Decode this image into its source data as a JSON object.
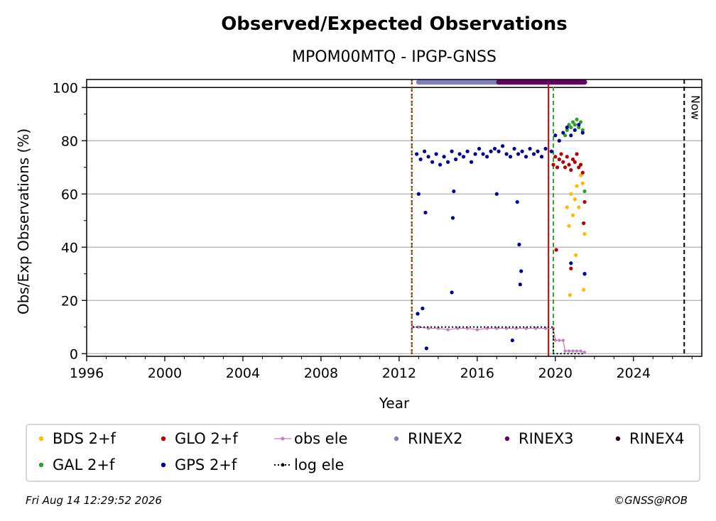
{
  "chart_data": {
    "type": "scatter",
    "title": "Observed/Expected Observations",
    "subtitle": "MPOM00MTQ - IPGP-GNSS",
    "xlabel": "Year",
    "ylabel": "Obs/Exp Observations (%)",
    "xlim": [
      1996,
      2027.5
    ],
    "ylim": [
      -1,
      103
    ],
    "xticks": [
      1996,
      2000,
      2004,
      2008,
      2012,
      2016,
      2020,
      2024
    ],
    "yticks": [
      0,
      20,
      40,
      60,
      80,
      100
    ],
    "grid": "horizontal",
    "legend_position": "bottom",
    "now_label": "Now",
    "now_x": 2026.6,
    "hline": 100,
    "vlines": [
      {
        "x": 2012.65,
        "color": "#2ca02c",
        "style": "dashed"
      },
      {
        "x": 2012.65,
        "color": "#cc0000",
        "style": "dotted"
      },
      {
        "x": 2019.65,
        "color": "#cc0000",
        "style": "solid"
      },
      {
        "x": 2019.9,
        "color": "#2ca02c",
        "style": "dashed"
      }
    ],
    "series": [
      {
        "name": "BDS 2+f",
        "color": "#ffbb00",
        "kind": "dot",
        "x": [
          2020.6,
          2020.7,
          2020.8,
          2020.9,
          2021.0,
          2021.1,
          2021.2,
          2021.3,
          2021.4,
          2021.5,
          2020.75,
          2021.05,
          2021.45
        ],
        "y": [
          55,
          48,
          60,
          52,
          58,
          63,
          55,
          67,
          64,
          45,
          22,
          37,
          24
        ]
      },
      {
        "name": "GLO 2+f",
        "color": "#b30000",
        "kind": "dot",
        "x": [
          2019.9,
          2020.0,
          2020.1,
          2020.2,
          2020.3,
          2020.4,
          2020.5,
          2020.6,
          2020.7,
          2020.8,
          2020.9,
          2021.0,
          2021.1,
          2021.2,
          2021.3,
          2021.4,
          2021.5,
          2020.05,
          2020.8,
          2021.45
        ],
        "y": [
          71,
          74,
          70,
          73,
          75,
          72,
          70,
          74,
          71,
          69,
          73,
          72,
          75,
          70,
          71,
          68,
          57,
          39,
          32,
          49
        ]
      },
      {
        "name": "GAL 2+f",
        "color": "#2ca02c",
        "kind": "dot",
        "x": [
          2020.5,
          2020.6,
          2020.7,
          2020.8,
          2020.9,
          2021.0,
          2021.1,
          2021.2,
          2021.3,
          2021.4,
          2021.5
        ],
        "y": [
          82,
          84,
          86,
          85,
          87,
          86,
          88,
          85,
          87,
          84,
          61
        ]
      },
      {
        "name": "GPS 2+f",
        "color": "#000099",
        "kind": "dot",
        "x": [
          2012.9,
          2013.1,
          2013.3,
          2013.5,
          2013.7,
          2013.9,
          2014.1,
          2014.3,
          2014.5,
          2014.7,
          2014.9,
          2015.1,
          2015.3,
          2015.5,
          2015.7,
          2015.9,
          2016.1,
          2016.3,
          2016.5,
          2016.7,
          2016.9,
          2017.1,
          2017.3,
          2017.5,
          2017.7,
          2017.9,
          2018.1,
          2018.3,
          2018.5,
          2018.7,
          2018.9,
          2019.1,
          2019.3,
          2019.5,
          2019.8,
          2020.0,
          2020.2,
          2020.4,
          2020.6,
          2020.8,
          2021.0,
          2021.2,
          2021.4,
          2021.5,
          2013.0,
          2013.2,
          2013.35,
          2014.7,
          2014.75,
          2014.8,
          2017.0,
          2017.8,
          2018.05,
          2018.15,
          2018.2,
          2018.25,
          2012.95,
          2013.4,
          2020.8,
          2021.5
        ],
        "y": [
          75,
          73,
          76,
          74,
          72,
          75,
          71,
          74,
          72,
          76,
          73,
          75,
          74,
          76,
          72,
          75,
          77,
          75,
          74,
          76,
          77,
          76,
          78,
          75,
          74,
          77,
          75,
          76,
          74,
          77,
          75,
          76,
          74,
          77,
          76,
          82,
          80,
          83,
          85,
          82,
          84,
          86,
          83,
          30,
          60,
          17,
          53,
          23,
          51,
          61,
          60,
          5,
          57,
          41,
          26,
          31,
          15,
          2,
          34,
          30
        ]
      },
      {
        "name": "obs ele",
        "color": "#c080c0",
        "kind": "line-dot",
        "x": [
          2012.7,
          2013.0,
          2013.5,
          2014.0,
          2014.5,
          2015.0,
          2015.5,
          2016.0,
          2016.5,
          2017.0,
          2017.5,
          2018.0,
          2018.5,
          2019.0,
          2019.5,
          2019.9,
          2020.0,
          2020.2,
          2020.4,
          2020.5,
          2020.7,
          2020.9,
          2021.1,
          2021.3,
          2021.5
        ],
        "y": [
          10,
          10,
          9.5,
          9.5,
          9,
          9.5,
          9.5,
          9,
          9.5,
          9.5,
          9.5,
          9.5,
          9.5,
          9.5,
          9.5,
          9.5,
          5,
          5,
          5,
          1,
          1,
          1,
          1,
          1,
          0.5
        ]
      },
      {
        "name": "log ele",
        "color": "#000000",
        "kind": "dotted-line",
        "x": [
          2012.7,
          2019.9,
          2019.9,
          2021.5
        ],
        "y": [
          10,
          10,
          0,
          0
        ]
      },
      {
        "name": "RINEX2",
        "color": "#8080c0",
        "kind": "band",
        "x_start": 2013.0,
        "x_end": 2017.1,
        "y": 102
      },
      {
        "name": "RINEX3",
        "color": "#660066",
        "kind": "band",
        "x_start": 2017.1,
        "x_end": 2021.5,
        "y": 102
      },
      {
        "name": "RINEX4",
        "color": "#220022",
        "kind": "band",
        "x_start": null,
        "x_end": null,
        "y": 102
      }
    ],
    "legend_order": [
      "BDS 2+f",
      "GLO 2+f",
      "obs ele",
      "RINEX2",
      "RINEX3",
      "RINEX4",
      "GAL 2+f",
      "GPS 2+f",
      "log ele"
    ]
  },
  "footer": {
    "timestamp": "Fri Aug 14 12:29:52 2026",
    "credit": "©GNSS@ROB"
  }
}
